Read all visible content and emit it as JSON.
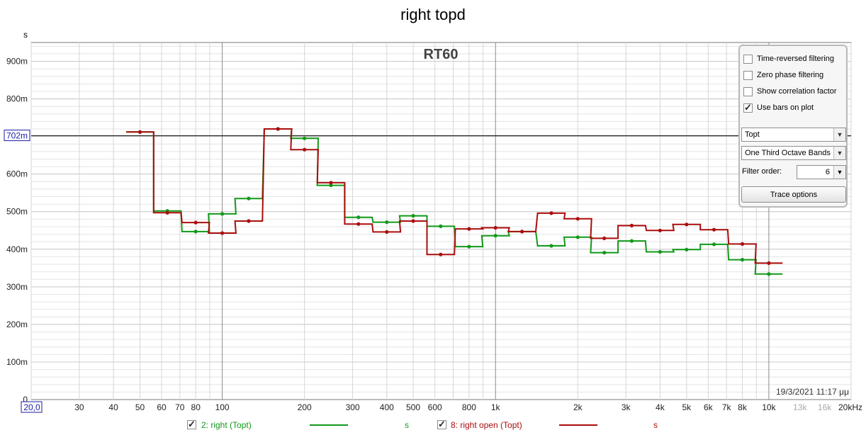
{
  "title": "right topd",
  "y_unit": "s",
  "chart_data": {
    "type": "line",
    "title": "RT60",
    "xscale": "log",
    "xlim": [
      20,
      20000
    ],
    "ylim": [
      0,
      0.95
    ],
    "y_ticks": [
      {
        "v": 0,
        "label": "0"
      },
      {
        "v": 0.1,
        "label": "100m"
      },
      {
        "v": 0.2,
        "label": "200m"
      },
      {
        "v": 0.3,
        "label": "300m"
      },
      {
        "v": 0.4,
        "label": "400m"
      },
      {
        "v": 0.5,
        "label": "500m"
      },
      {
        "v": 0.6,
        "label": "600m"
      },
      {
        "v": 0.8,
        "label": "800m"
      },
      {
        "v": 0.9,
        "label": "900m"
      }
    ],
    "marker": {
      "value": 0.702,
      "label": "702m"
    },
    "x_ticks": [
      {
        "v": 20,
        "label": "20,0",
        "boxed": true
      },
      {
        "v": 30,
        "label": "30"
      },
      {
        "v": 40,
        "label": "40"
      },
      {
        "v": 50,
        "label": "50"
      },
      {
        "v": 60,
        "label": "60"
      },
      {
        "v": 70,
        "label": "70"
      },
      {
        "v": 80,
        "label": "80"
      },
      {
        "v": 100,
        "label": "100"
      },
      {
        "v": 200,
        "label": "200"
      },
      {
        "v": 300,
        "label": "300"
      },
      {
        "v": 400,
        "label": "400"
      },
      {
        "v": 500,
        "label": "500"
      },
      {
        "v": 600,
        "label": "600"
      },
      {
        "v": 800,
        "label": "800"
      },
      {
        "v": 1000,
        "label": "1k"
      },
      {
        "v": 2000,
        "label": "2k"
      },
      {
        "v": 3000,
        "label": "3k"
      },
      {
        "v": 4000,
        "label": "4k"
      },
      {
        "v": 5000,
        "label": "5k"
      },
      {
        "v": 6000,
        "label": "6k"
      },
      {
        "v": 7000,
        "label": "7k"
      },
      {
        "v": 8000,
        "label": "8k"
      },
      {
        "v": 10000,
        "label": "10k"
      },
      {
        "v": 13000,
        "label": "13k",
        "dim": true
      },
      {
        "v": 16000,
        "label": "16k",
        "dim": true
      },
      {
        "v": 20000,
        "label": "20kHz"
      }
    ],
    "x": [
      50,
      63,
      80,
      100,
      125,
      160,
      200,
      250,
      315,
      400,
      500,
      630,
      800,
      1000,
      1250,
      1600,
      2000,
      2500,
      3150,
      4000,
      5000,
      6300,
      8000,
      10000
    ],
    "series": [
      {
        "name": "2: right (Topt)",
        "color": "#11991a",
        "unit": "s",
        "values": [
          0.712,
          0.502,
          0.447,
          0.494,
          0.535,
          0.72,
          0.695,
          0.57,
          0.485,
          0.472,
          0.489,
          0.461,
          0.407,
          0.436,
          0.447,
          0.409,
          0.432,
          0.391,
          0.422,
          0.393,
          0.399,
          0.413,
          0.372,
          0.334
        ]
      },
      {
        "name": "8: right open (Topt)",
        "color": "#aa0d0d",
        "unit": "s",
        "values": [
          0.712,
          0.497,
          0.471,
          0.443,
          0.475,
          0.72,
          0.665,
          0.577,
          0.467,
          0.446,
          0.475,
          0.386,
          0.454,
          0.457,
          0.447,
          0.496,
          0.481,
          0.429,
          0.463,
          0.45,
          0.466,
          0.452,
          0.414,
          0.363
        ]
      }
    ]
  },
  "panel": {
    "options": [
      {
        "label": "Time-reversed filtering",
        "checked": false
      },
      {
        "label": "Zero phase filtering",
        "checked": false
      },
      {
        "label": "Show correlation factor",
        "checked": false
      },
      {
        "label": "Use bars on plot",
        "checked": true
      }
    ],
    "metric_select": "Topt",
    "band_select": "One Third Octave Bands",
    "filter_order_label": "Filter order:",
    "filter_order_value": "6",
    "trace_button": "Trace options"
  },
  "timestamp": "19/3/2021 11:17 μμ"
}
